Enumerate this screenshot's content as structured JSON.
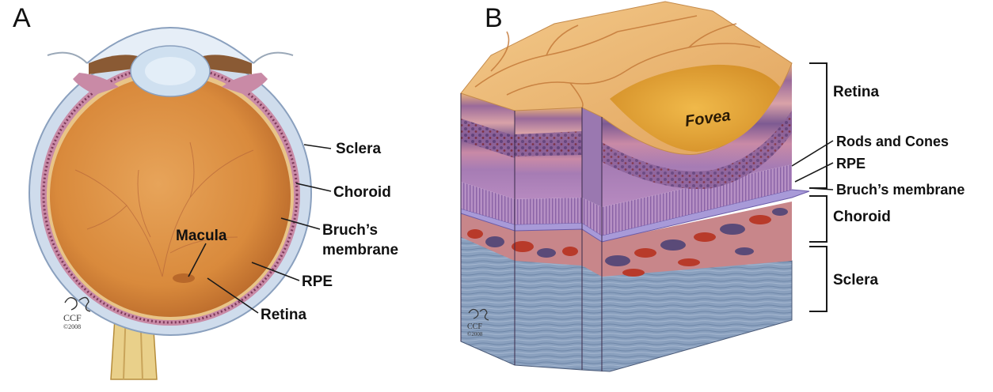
{
  "panels": {
    "a": {
      "letter": "A",
      "labels": {
        "sclera": "Sclera",
        "choroid": "Choroid",
        "bruchs_line1": "Bruch’s",
        "bruchs_line2": "membrane",
        "rpe": "RPE",
        "retina": "Retina",
        "macula": "Macula"
      },
      "signature": {
        "initials": "DS",
        "org": "CCF",
        "year": "©2008"
      }
    },
    "b": {
      "letter": "B",
      "labels": {
        "fovea": "Fovea",
        "retina": "Retina",
        "rods_cones": "Rods and Cones",
        "rpe": "RPE",
        "bruchs": "Bruch’s membrane",
        "choroid": "Choroid",
        "sclera": "Sclera"
      },
      "signature": {
        "initials": "DS",
        "org": "CCF",
        "year": "©2008"
      }
    }
  },
  "colors": {
    "vitreous": "#d98a3c",
    "retina_layer": "#c86a8a",
    "choroid_vessel": "#b83a2a",
    "choroid_dark": "#5a4a78",
    "sclera_blue": "#8fa6c4",
    "rpe_band": "#a89ad8",
    "optic_nerve": "#e9d08a",
    "lens": "#cfe0f0",
    "iris": "#8a5a34"
  }
}
